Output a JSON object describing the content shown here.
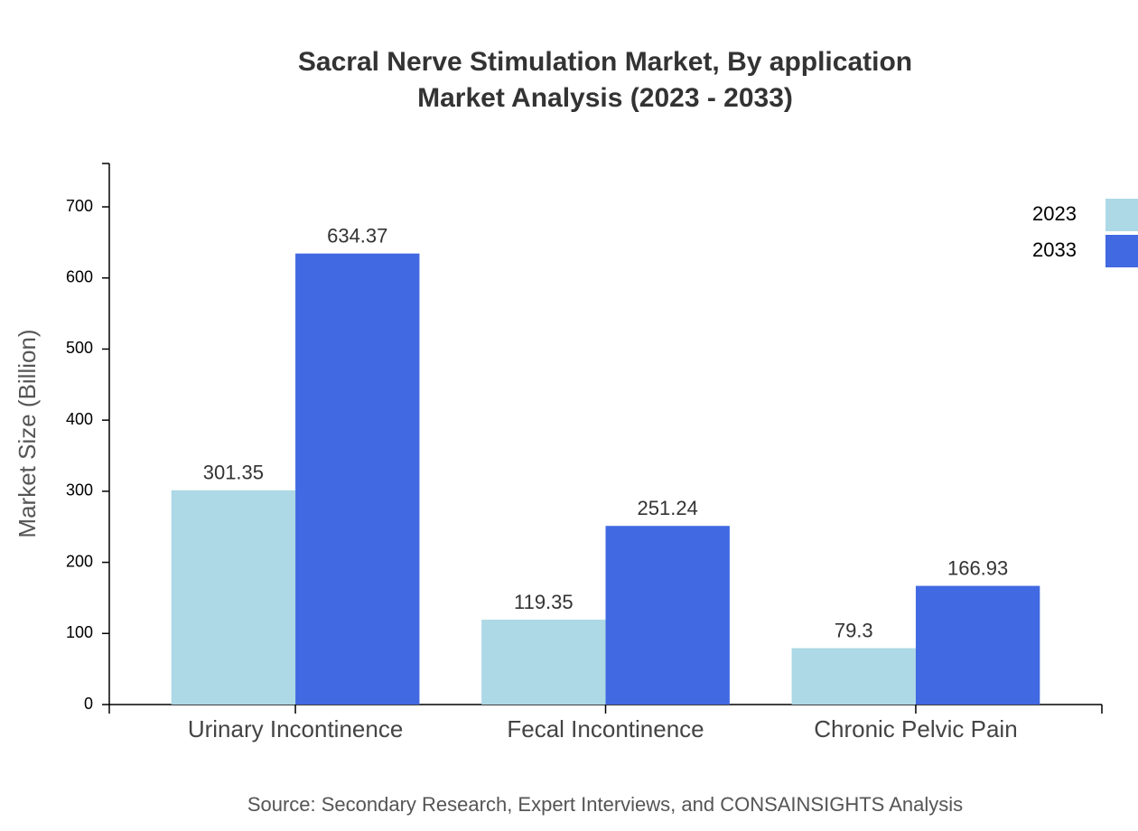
{
  "chart_data": {
    "type": "bar",
    "title": "Sacral Nerve Stimulation Market, By application",
    "subtitle": "Market Analysis (2023 - 2033)",
    "y_label": "Market Size (Billion)",
    "source": "Source: Secondary Research, Expert Interviews, and CONSAINSIGHTS Analysis",
    "categories": [
      "Urinary Incontinence",
      "Fecal Incontinence",
      "Chronic Pelvic Pain"
    ],
    "series": [
      {
        "name": "2023",
        "color": "#add8e6",
        "values": [
          301.35,
          119.35,
          79.3
        ]
      },
      {
        "name": "2033",
        "color": "#4169e1",
        "values": [
          634.37,
          251.24,
          166.93
        ]
      }
    ],
    "ylim": [
      0,
      761
    ],
    "yticks": [
      0,
      100,
      200,
      300,
      400,
      500,
      600,
      700
    ],
    "legend": "top-right"
  }
}
